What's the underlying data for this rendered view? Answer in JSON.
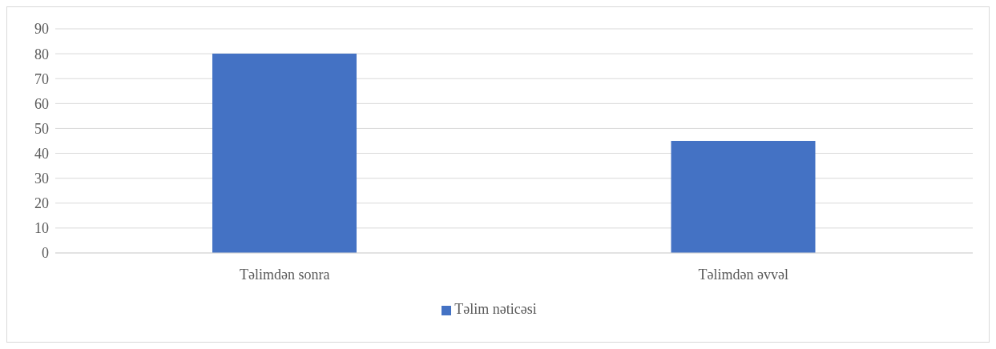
{
  "chart_data": {
    "type": "bar",
    "categories": [
      "Təlimdən sonra",
      "Təlimdən əvvəl"
    ],
    "series": [
      {
        "name": "Təlim nəticəsi",
        "color": "#4472c4",
        "values": [
          80,
          45
        ]
      }
    ],
    "ylim": [
      0,
      90
    ],
    "yticks": [
      0,
      10,
      20,
      30,
      40,
      50,
      60,
      70,
      80,
      90
    ],
    "grid": "y",
    "legend": "bottom"
  }
}
